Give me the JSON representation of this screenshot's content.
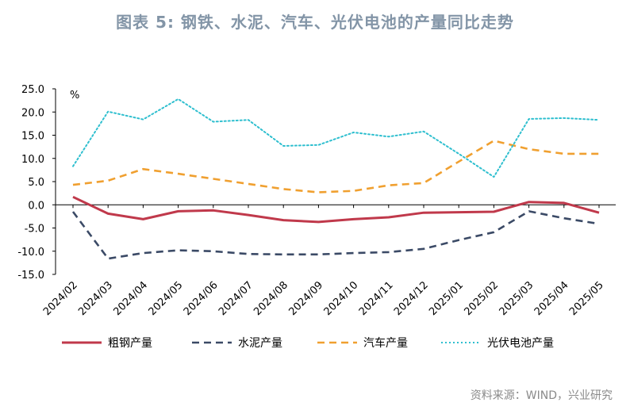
{
  "header": {
    "title": "图表 5:   钢铁、水泥、汽车、光伏电池的产量同比走势",
    "source": "资料来源：WIND，兴业研究"
  },
  "chart_data": {
    "type": "line",
    "title": "图表 5:   钢铁、水泥、汽车、光伏电池的产量同比走势",
    "unit": "%",
    "xlabel": "",
    "ylabel": "",
    "ylim": [
      -15,
      25
    ],
    "yticks": [
      "25.0",
      "20.0",
      "15.0",
      "10.0",
      "5.0",
      "0.0",
      "-5.0",
      "-10.0",
      "-15.0"
    ],
    "categories": [
      "2024/02",
      "2024/03",
      "2024/04",
      "2024/05",
      "2024/06",
      "2024/07",
      "2024/08",
      "2024/09",
      "2024/10",
      "2024/11",
      "2024/12",
      "2025/01",
      "2025/02",
      "2025/03",
      "2025/04",
      "2025/05"
    ],
    "legend_position": "bottom",
    "grid": false,
    "series": [
      {
        "name": "粗钢产量",
        "color": "#c0394b",
        "style": "solid",
        "values": [
          1.7,
          -1.9,
          -3.1,
          -1.4,
          -1.2,
          -2.2,
          -3.3,
          -3.7,
          -3.1,
          -2.7,
          -1.7,
          -1.6,
          -1.5,
          0.6,
          0.4,
          -1.7
        ]
      },
      {
        "name": "水泥产量",
        "color": "#3b4a66",
        "style": "dashed",
        "values": [
          -1.5,
          -11.6,
          -10.4,
          -9.8,
          -10.0,
          -10.6,
          -10.7,
          -10.7,
          -10.4,
          -10.2,
          -9.5,
          -7.6,
          -5.9,
          -1.4,
          -2.9,
          -4.1
        ]
      },
      {
        "name": "汽车产量",
        "color": "#f0a030",
        "style": "dashed",
        "values": [
          4.3,
          5.2,
          7.7,
          6.7,
          5.6,
          4.5,
          3.4,
          2.7,
          3.0,
          4.2,
          4.7,
          9.3,
          13.8,
          12.0,
          11.0,
          11.0
        ]
      },
      {
        "name": "光伏电池产量",
        "color": "#2fbfcf",
        "style": "dotted",
        "values": [
          8.3,
          20.1,
          18.4,
          22.8,
          17.9,
          18.3,
          12.7,
          12.9,
          15.6,
          14.7,
          15.8,
          11.0,
          6.0,
          18.5,
          18.7,
          18.3
        ]
      }
    ]
  }
}
